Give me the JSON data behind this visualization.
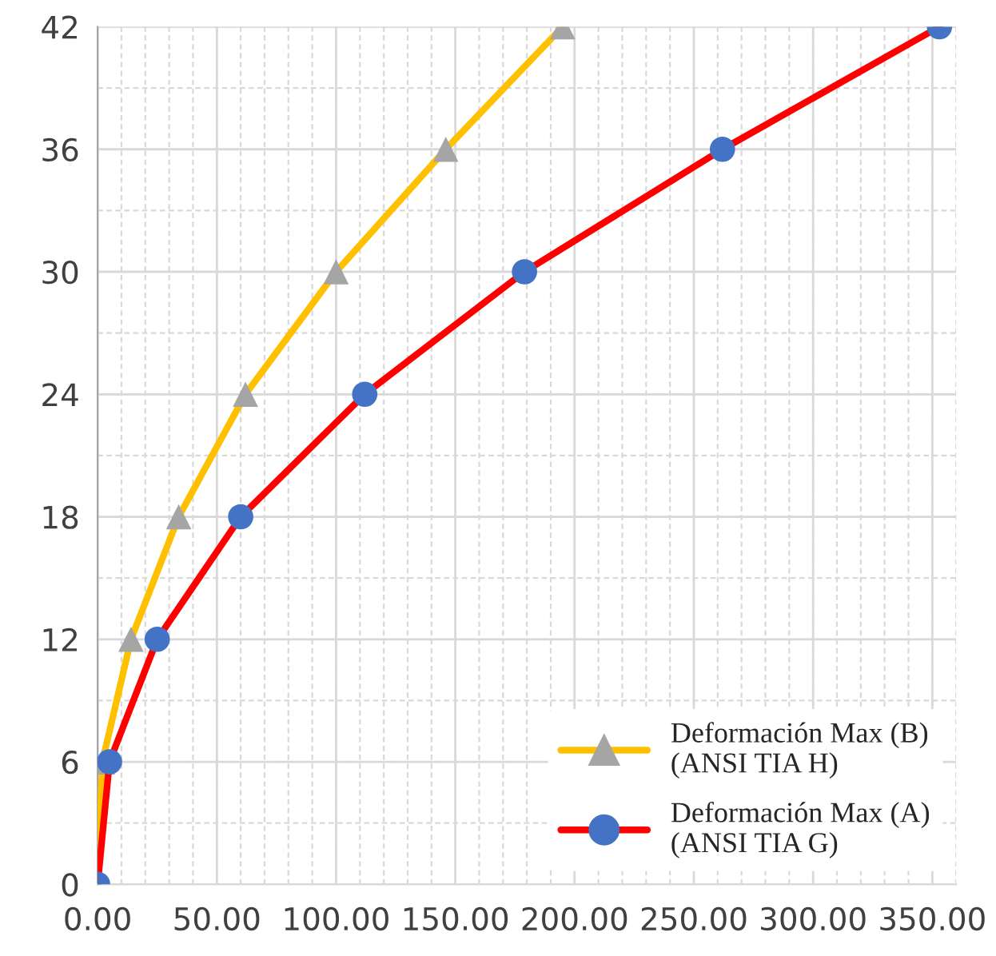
{
  "chart_data": {
    "type": "line",
    "series": [
      {
        "name": "Deformación Max (B)\n(ANSI TIA H)",
        "color": "#ffc000",
        "colors": [
          "#a5a5a5",
          "#a5a5a5",
          "#a5a5a5",
          "#a5a5a5",
          "#a5a5a5",
          "#a5a5a5",
          "#a5a5a5",
          "#a5a5a5"
        ],
        "marker": "triangle",
        "x": [
          0,
          2,
          14,
          34,
          62,
          100,
          146,
          195
        ],
        "values": [
          0,
          6,
          12,
          18,
          24,
          30,
          36,
          42
        ]
      },
      {
        "name": "Deformación Max (A)\n(ANSI TIA G)",
        "color": "#ff0000",
        "colors": [
          "#4472c4",
          "#4472c4",
          "#4472c4",
          "#4472c4",
          "#4472c4",
          "#4472c4",
          "#4472c4",
          "#4472c4"
        ],
        "marker": "circle",
        "x": [
          0,
          5,
          25,
          60,
          112,
          179,
          262,
          353
        ],
        "values": [
          0,
          6,
          12,
          18,
          24,
          30,
          36,
          42
        ]
      }
    ],
    "xlim": [
      0,
      360
    ],
    "xticks": [
      {
        "value": 0,
        "label": "0.00"
      },
      {
        "value": 50,
        "label": "50.00"
      },
      {
        "value": 100,
        "label": "100.00"
      },
      {
        "value": 150,
        "label": "150.00"
      },
      {
        "value": 200,
        "label": "200.00"
      },
      {
        "value": 250,
        "label": "250.00"
      },
      {
        "value": 300,
        "label": "300.00"
      },
      {
        "value": 350,
        "label": "350.00"
      }
    ],
    "ylim": [
      0,
      42
    ],
    "yticks": [
      0,
      6,
      12,
      18,
      24,
      30,
      36,
      42
    ],
    "grid": true,
    "legend": "bottom right",
    "line_style": "solid"
  }
}
